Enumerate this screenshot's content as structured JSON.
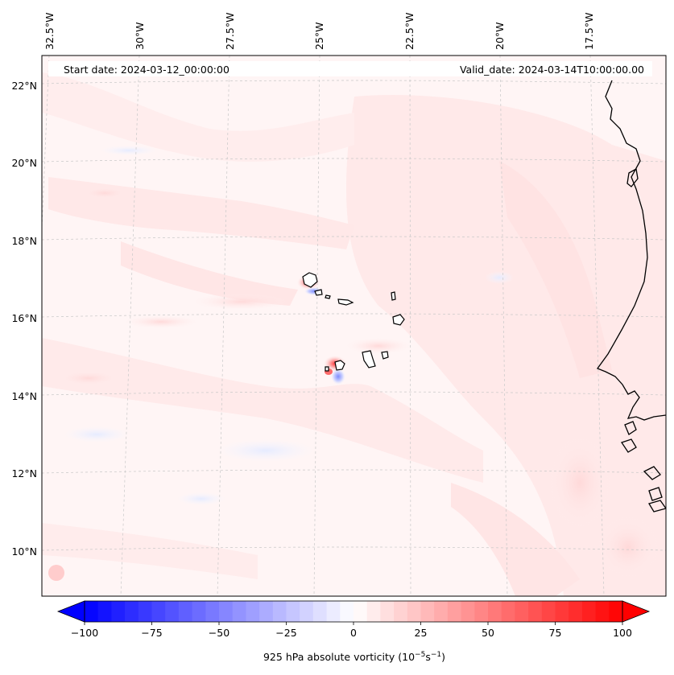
{
  "map": {
    "start_date": "Start date: 2024-03-12_00:00:00",
    "valid_date": "Valid_date: 2024-03-14T10:00:00.00",
    "lon_labels": [
      "32.5°W",
      "30°W",
      "27.5°W",
      "25°W",
      "22.5°W",
      "20°W",
      "17.5°W"
    ],
    "lat_labels": [
      "22°N",
      "20°N",
      "18°N",
      "16°N",
      "14°N",
      "12°N",
      "10°N"
    ]
  },
  "colorbar": {
    "label": "925 hPa absolute vorticity (10",
    "label_exp1": "−5",
    "label_mid": "s",
    "label_exp2": "−1",
    "label_end": ")",
    "min": -100,
    "max": 100,
    "ticks": [
      "−100",
      "−75",
      "−50",
      "−25",
      "0",
      "25",
      "50",
      "75",
      "100"
    ],
    "low_color": "#0000ff",
    "high_color": "#ff0000"
  },
  "colors": {
    "background_field": "#fff5f5",
    "positive_tint": "#ffe4e4",
    "coastline": "#000000"
  }
}
